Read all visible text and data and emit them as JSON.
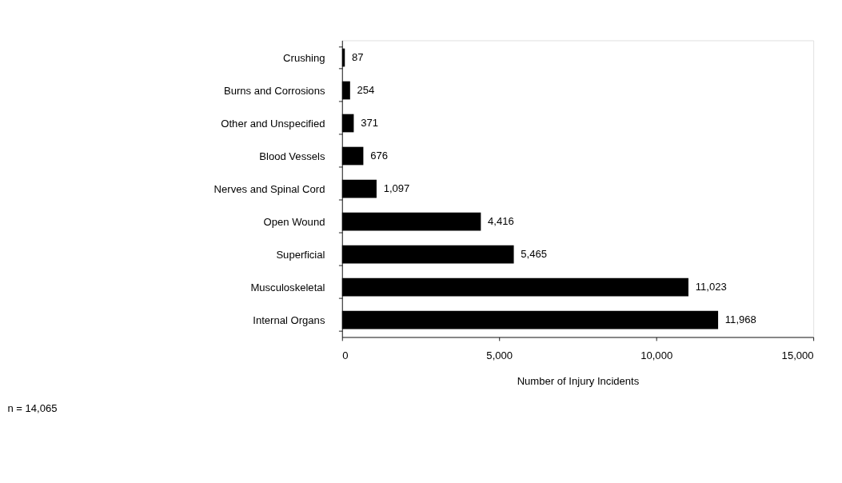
{
  "chart_data": {
    "type": "bar",
    "orientation": "horizontal",
    "categories": [
      "Crushing",
      "Burns and Corrosions",
      "Other and Unspecified",
      "Blood Vessels",
      "Nerves and Spinal Cord",
      "Open Wound",
      "Superficial",
      "Musculoskeletal",
      "Internal Organs"
    ],
    "values": [
      87,
      254,
      371,
      676,
      1097,
      4416,
      5465,
      11023,
      11968
    ],
    "value_labels": [
      "87",
      "254",
      "371",
      "676",
      "1,097",
      "4,416",
      "5,465",
      "11,023",
      "11,968"
    ],
    "color": "#000000",
    "xlim": [
      0,
      15000
    ],
    "xticks": [
      0,
      {
        "value": 5000,
        "label": "5,000"
      },
      {
        "value": 10000,
        "label": "10,000"
      },
      {
        "value": 15000,
        "label": "15,000"
      }
    ],
    "xlabel": "Number of Injury Incidents",
    "annotations": [
      "n = 14,065"
    ],
    "grid": false
  }
}
